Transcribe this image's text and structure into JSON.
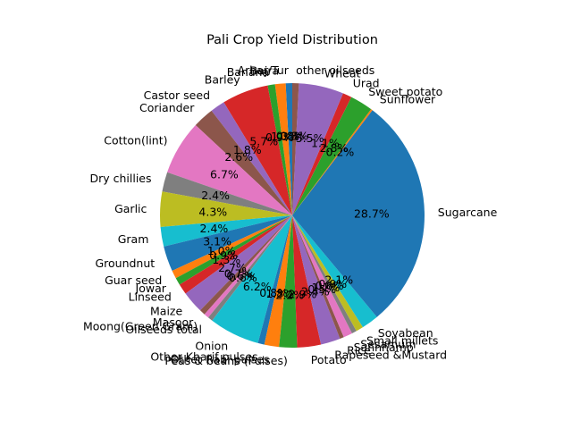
{
  "chart_data": {
    "type": "pie",
    "title": "Pali Crop Yield Distribution",
    "start_angle_deg": 90,
    "direction": "counterclockwise",
    "slices": [
      {
        "label": "Arhar/Tur",
        "value": 0.8,
        "pct_label": "0.8%",
        "color": "#1f77b4"
      },
      {
        "label": "Bajra",
        "value": 1.3,
        "pct_label": "1.3%",
        "color": "#ff7f0e"
      },
      {
        "label": "Banana",
        "value": 0.9,
        "pct_label": "0.9%",
        "color": "#2ca02c"
      },
      {
        "label": "Barley",
        "value": 5.7,
        "pct_label": "5.7%",
        "color": "#d62728"
      },
      {
        "label": "Castor seed",
        "value": 1.8,
        "pct_label": "1.8%",
        "color": "#9467bd"
      },
      {
        "label": "Coriander",
        "value": 2.6,
        "pct_label": "2.6%",
        "color": "#8c564b"
      },
      {
        "label": "Cotton(lint)",
        "value": 6.7,
        "pct_label": "6.7%",
        "color": "#e377c2"
      },
      {
        "label": "Dry chillies",
        "value": 2.4,
        "pct_label": "2.4%",
        "color": "#7f7f7f"
      },
      {
        "label": "Garlic",
        "value": 4.3,
        "pct_label": "4.3%",
        "color": "#bcbd22"
      },
      {
        "label": "Gram",
        "value": 2.4,
        "pct_label": "2.4%",
        "color": "#17becf"
      },
      {
        "label": "Groundnut",
        "value": 3.1,
        "pct_label": "3.1%",
        "color": "#1f77b4"
      },
      {
        "label": "Guar seed",
        "value": 1.0,
        "pct_label": "1.0%",
        "color": "#ff7f0e"
      },
      {
        "label": "Jowar",
        "value": 0.9,
        "pct_label": "0.9%",
        "color": "#2ca02c"
      },
      {
        "label": "Linseed",
        "value": 1.3,
        "pct_label": "1.3%",
        "color": "#d62728"
      },
      {
        "label": "Maize",
        "value": 2.7,
        "pct_label": "2.7%",
        "color": "#9467bd"
      },
      {
        "label": "Masoor",
        "value": 0.7,
        "pct_label": "0.7%",
        "color": "#8c564b"
      },
      {
        "label": "Moong(Green Gram)",
        "value": 0.6,
        "pct_label": "0.6%",
        "color": "#e377c2"
      },
      {
        "label": "Oilseeds total",
        "value": 0.6,
        "pct_label": "0.6%",
        "color": "#7f7f7f"
      },
      {
        "label": "Onion",
        "value": 6.2,
        "pct_label": "6.2%",
        "color": "#17becf"
      },
      {
        "label": "Other Kharif pulses",
        "value": 0.8,
        "pct_label": "0.8%",
        "color": "#1f77b4"
      },
      {
        "label": "Other Rabi pulses",
        "value": 1.8,
        "pct_label": "1.8%",
        "color": "#ff7f0e"
      },
      {
        "label": "Peas & beans (Pulses)",
        "value": 2.2,
        "pct_label": "2.2%",
        "color": "#2ca02c"
      },
      {
        "label": "Potato",
        "value": 2.9,
        "pct_label": "2.9%",
        "color": "#d62728"
      },
      {
        "label": "Rapeseed &Mustard",
        "value": 2.4,
        "pct_label": "2.4%",
        "color": "#9467bd"
      },
      {
        "label": "Rice",
        "value": 0.5,
        "pct_label": "0.5%",
        "color": "#8c564b"
      },
      {
        "label": "Sannhamp",
        "value": 1.1,
        "pct_label": "1.1%",
        "color": "#e377c2"
      },
      {
        "label": "Sesamum",
        "value": 0.6,
        "pct_label": "0.6%",
        "color": "#7f7f7f"
      },
      {
        "label": "Small millets",
        "value": 0.9,
        "pct_label": "0.9%",
        "color": "#bcbd22"
      },
      {
        "label": "Soyabean",
        "value": 2.1,
        "pct_label": "2.1%",
        "color": "#17becf"
      },
      {
        "label": "Sugarcane",
        "value": 28.7,
        "pct_label": "28.7%",
        "color": "#1f77b4"
      },
      {
        "label": "Sunflower",
        "value": 0.2,
        "pct_label": "0.2%",
        "color": "#ff7f0e"
      },
      {
        "label": "Sweet potato",
        "value": 2.8,
        "pct_label": "2.8%",
        "color": "#2ca02c"
      },
      {
        "label": "Urad",
        "value": 1.1,
        "pct_label": "1.1%",
        "color": "#d62728"
      },
      {
        "label": "Wheat",
        "value": 5.5,
        "pct_label": "5.5%",
        "color": "#9467bd"
      },
      {
        "label": "other oilseeds",
        "value": 0.8,
        "pct_label": "0.8%",
        "color": "#8c564b"
      }
    ]
  }
}
